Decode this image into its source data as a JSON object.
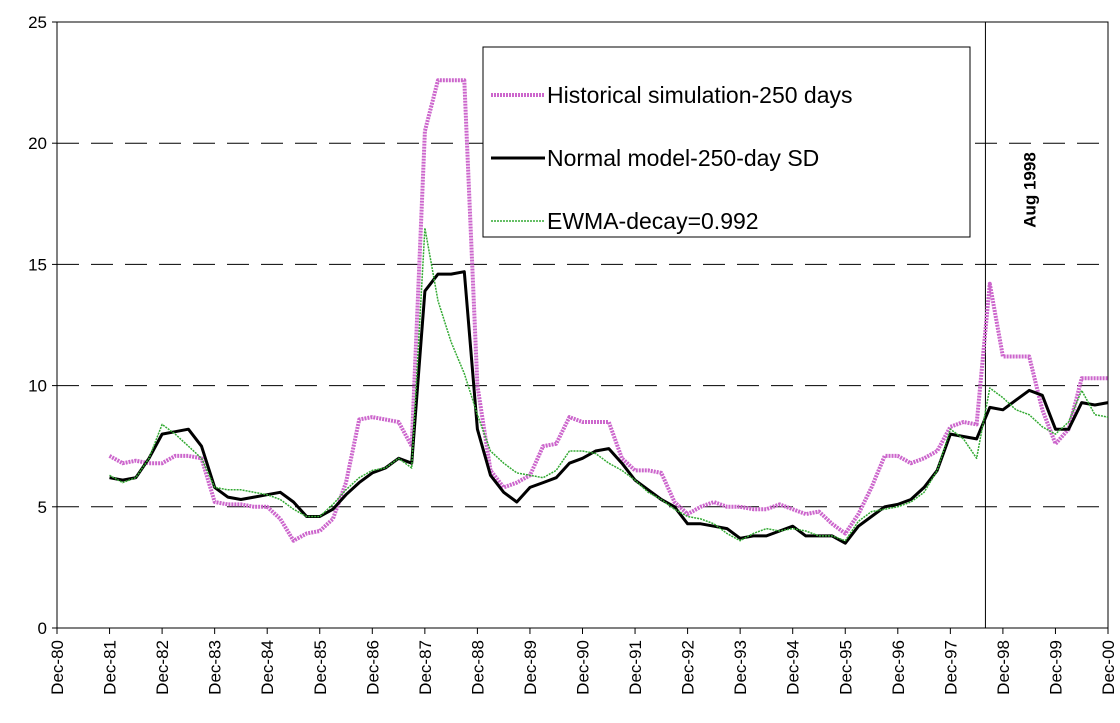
{
  "chart_data": {
    "type": "line",
    "categories": [
      "Dec-80",
      null,
      null,
      null,
      "Dec-81",
      null,
      null,
      null,
      "Dec-82",
      null,
      null,
      null,
      "Dec-83",
      null,
      null,
      null,
      "Dec-84",
      null,
      null,
      null,
      "Dec-85",
      null,
      null,
      null,
      "Dec-86",
      null,
      null,
      null,
      "Dec-87",
      null,
      null,
      null,
      "Dec-88",
      null,
      null,
      null,
      "Dec-89",
      null,
      null,
      null,
      "Dec-90",
      null,
      null,
      null,
      "Dec-91",
      null,
      null,
      null,
      "Dec-92",
      null,
      null,
      null,
      "Dec-93",
      null,
      null,
      null,
      "Dec-94",
      null,
      null,
      null,
      "Dec-95",
      null,
      null,
      null,
      "Dec-96",
      null,
      null,
      null,
      "Dec-97",
      null,
      null,
      null,
      "Dec-98",
      null,
      null,
      null,
      "Dec-99",
      null,
      null,
      null,
      "Dec-00"
    ],
    "series": [
      {
        "name": "Historical simulation-250 days",
        "color": "#cc66cc",
        "values": [
          null,
          null,
          null,
          null,
          7.1,
          6.8,
          6.9,
          6.8,
          6.8,
          7.1,
          7.1,
          7.0,
          5.2,
          5.1,
          5.1,
          5.0,
          5.0,
          4.5,
          3.6,
          3.9,
          4.0,
          4.5,
          6.0,
          8.6,
          8.7,
          8.6,
          8.5,
          7.5,
          20.5,
          22.6,
          22.6,
          22.6,
          10.0,
          6.5,
          5.8,
          6.0,
          6.3,
          7.5,
          7.6,
          8.7,
          8.5,
          8.5,
          8.5,
          7.0,
          6.5,
          6.5,
          6.4,
          5.2,
          4.7,
          5.0,
          5.2,
          5.0,
          5.0,
          4.9,
          4.9,
          5.1,
          4.9,
          4.7,
          4.8,
          4.3,
          3.9,
          4.7,
          5.8,
          7.1,
          7.1,
          6.8,
          7.0,
          7.3,
          8.3,
          8.5,
          8.4,
          14.2,
          11.2,
          11.2,
          11.2,
          9.0,
          7.6,
          8.2,
          10.3,
          10.3,
          10.3
        ]
      },
      {
        "name": "Normal model-250-day SD",
        "color": "#000000",
        "values": [
          null,
          null,
          null,
          null,
          6.2,
          6.1,
          6.2,
          7.0,
          8.0,
          8.1,
          8.2,
          7.5,
          5.8,
          5.4,
          5.3,
          5.4,
          5.5,
          5.6,
          5.2,
          4.6,
          4.6,
          4.9,
          5.5,
          6.0,
          6.4,
          6.6,
          7.0,
          6.8,
          13.9,
          14.6,
          14.6,
          14.7,
          8.2,
          6.3,
          5.6,
          5.2,
          5.8,
          6.0,
          6.2,
          6.8,
          7.0,
          7.3,
          7.4,
          6.8,
          6.1,
          5.7,
          5.3,
          5.0,
          4.3,
          4.3,
          4.2,
          4.1,
          3.7,
          3.8,
          3.8,
          4.0,
          4.2,
          3.8,
          3.8,
          3.8,
          3.5,
          4.2,
          4.6,
          5.0,
          5.1,
          5.3,
          5.8,
          6.5,
          8.0,
          7.9,
          7.8,
          9.1,
          9.0,
          9.4,
          9.8,
          9.6,
          8.2,
          8.2,
          9.3,
          9.2,
          9.3
        ]
      },
      {
        "name": "EWMA-decay=0.992",
        "color": "#33aa33",
        "values": [
          null,
          null,
          null,
          null,
          6.3,
          6.0,
          6.2,
          7.0,
          8.4,
          8.0,
          7.5,
          7.0,
          5.8,
          5.7,
          5.7,
          5.6,
          5.5,
          5.3,
          4.9,
          4.6,
          4.6,
          5.1,
          5.7,
          6.2,
          6.5,
          6.6,
          7.0,
          6.6,
          16.5,
          13.5,
          11.8,
          10.5,
          8.8,
          7.3,
          6.8,
          6.4,
          6.3,
          6.2,
          6.5,
          7.3,
          7.3,
          7.2,
          6.8,
          6.5,
          6.1,
          5.6,
          5.3,
          4.9,
          4.6,
          4.5,
          4.3,
          3.9,
          3.6,
          3.9,
          4.1,
          4.0,
          4.1,
          4.0,
          3.8,
          3.8,
          3.6,
          4.4,
          4.8,
          4.9,
          5.0,
          5.2,
          5.6,
          6.5,
          8.2,
          7.8,
          7.0,
          9.9,
          9.5,
          9.0,
          8.8,
          8.3,
          8.0,
          8.5,
          9.8,
          8.8,
          8.7
        ]
      }
    ],
    "annotation": "Aug 1998",
    "ylim": [
      0,
      25
    ],
    "yticks": [
      0,
      5,
      10,
      15,
      20,
      25
    ],
    "grid": true,
    "legend_position": "top-right"
  }
}
